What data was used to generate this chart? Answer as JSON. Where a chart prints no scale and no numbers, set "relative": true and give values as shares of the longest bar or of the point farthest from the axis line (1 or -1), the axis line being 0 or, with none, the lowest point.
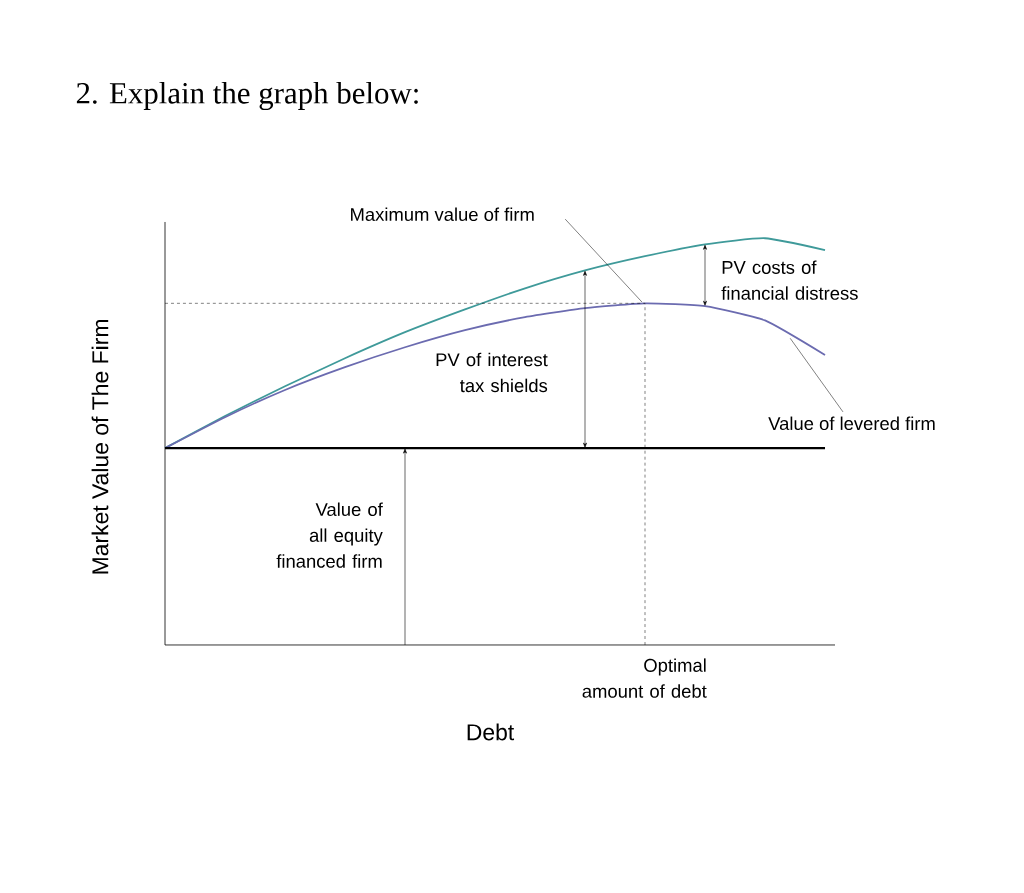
{
  "chart_data": {
    "type": "line",
    "relative": true,
    "title": "2. Explain the graph below:",
    "xlabel": "Debt",
    "ylabel": "Market Value of The Firm",
    "categories": [
      null,
      null,
      null,
      null,
      null,
      null,
      null,
      null,
      null,
      null,
      null,
      null
    ],
    "series": [
      {
        "color": "#3f9a9a",
        "values": [
          0.484,
          0.563,
          0.636,
          0.705,
          0.769,
          0.825,
          0.877,
          0.921,
          0.956,
          0.985,
          1.0,
          0.971
        ]
      },
      {
        "color": "#6b6bb0",
        "values": [
          0.484,
          0.56,
          0.627,
          0.683,
          0.732,
          0.774,
          0.806,
          0.828,
          0.84,
          0.833,
          0.798,
          0.713
        ]
      },
      {
        "color": "#000000",
        "values": [
          0.484,
          0.484,
          0.484,
          0.484,
          0.484,
          0.484,
          0.484,
          0.484,
          0.484,
          0.484,
          0.484,
          0.484
        ]
      }
    ],
    "ref_lines": [
      {
        "axis": "y",
        "value": 0.84,
        "line_style": "dashed"
      }
    ],
    "annotations": [
      "Maximum value of firm",
      "PV of interest tax shields",
      "PV costs of financial distress",
      "Value of levered firm",
      "Value of all equity financed firm",
      "Optimal amount of debt"
    ],
    "marker": "none",
    "line_style": "solid"
  }
}
